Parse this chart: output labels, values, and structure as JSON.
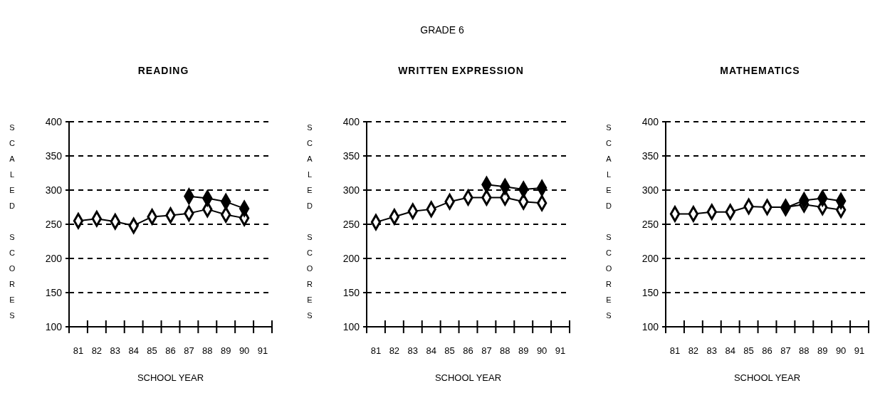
{
  "chart_data": [
    {
      "type": "line",
      "title": "READING",
      "annotations": [
        "GRADE 6"
      ],
      "xlabel": "SCHOOL YEAR",
      "ylabel": "SCALED SCORES",
      "categories": [
        "81",
        "82",
        "83",
        "84",
        "85",
        "86",
        "87",
        "88",
        "89",
        "90",
        "91"
      ],
      "ylim": [
        100,
        400
      ],
      "yticks": [
        100,
        150,
        200,
        250,
        300,
        350,
        400
      ],
      "grid": "y",
      "marker": "diamond",
      "series": [
        {
          "color": "#ffffff",
          "values": [
            255,
            258,
            254,
            248,
            261,
            263,
            266,
            272,
            264,
            259,
            null
          ]
        },
        {
          "color": "#000000",
          "values": [
            null,
            null,
            null,
            null,
            null,
            null,
            291,
            288,
            283,
            273,
            null
          ]
        }
      ]
    },
    {
      "type": "line",
      "title": "WRITTEN   EXPRESSION",
      "xlabel": "SCHOOL YEAR",
      "ylabel": "SCALED SCORES",
      "categories": [
        "81",
        "82",
        "83",
        "84",
        "85",
        "86",
        "87",
        "88",
        "89",
        "90",
        "91"
      ],
      "ylim": [
        100,
        400
      ],
      "yticks": [
        100,
        150,
        200,
        250,
        300,
        350,
        400
      ],
      "grid": "y",
      "marker": "diamond",
      "series": [
        {
          "color": "#ffffff",
          "values": [
            253,
            261,
            269,
            272,
            283,
            289,
            289,
            289,
            283,
            281,
            null
          ]
        },
        {
          "color": "#000000",
          "values": [
            null,
            null,
            null,
            null,
            null,
            null,
            308,
            305,
            301,
            303,
            null
          ]
        }
      ]
    },
    {
      "type": "line",
      "title": "MATHEMATICS",
      "xlabel": "SCHOOL YEAR",
      "ylabel": "SCALED SCORES",
      "categories": [
        "81",
        "82",
        "83",
        "84",
        "85",
        "86",
        "87",
        "88",
        "89",
        "90",
        "91"
      ],
      "ylim": [
        100,
        400
      ],
      "yticks": [
        100,
        150,
        200,
        250,
        300,
        350,
        400
      ],
      "grid": "y",
      "marker": "diamond",
      "series": [
        {
          "color": "#ffffff",
          "values": [
            265,
            265,
            268,
            268,
            276,
            275,
            275,
            279,
            275,
            271,
            null
          ]
        },
        {
          "color": "#000000",
          "values": [
            null,
            null,
            null,
            null,
            null,
            null,
            274,
            285,
            288,
            284,
            null
          ]
        }
      ]
    }
  ]
}
